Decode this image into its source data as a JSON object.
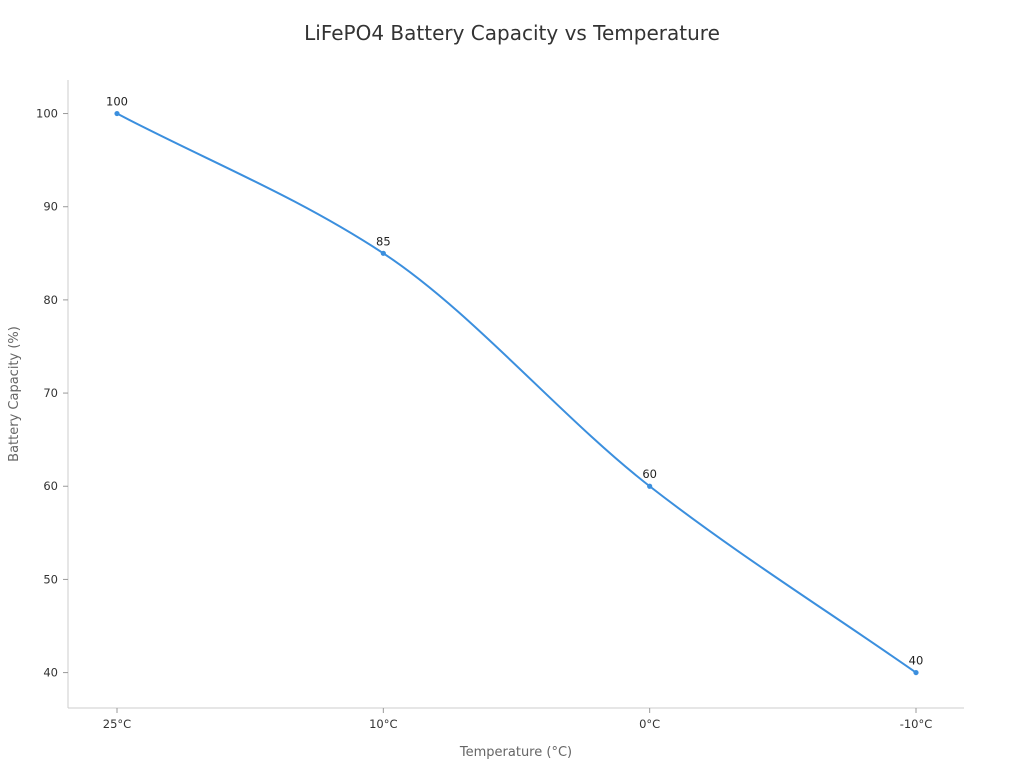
{
  "chart_data": {
    "type": "line",
    "title": "LiFePO4 Battery Capacity vs Temperature",
    "xlabel": "Temperature (°C)",
    "ylabel": "Battery Capacity (%)",
    "categories": [
      "25°C",
      "10°C",
      "0°C",
      "-10°C"
    ],
    "series": [
      {
        "values": [
          100,
          85,
          60,
          40
        ]
      }
    ],
    "data_labels": [
      "100",
      "85",
      "60",
      "40"
    ],
    "yticks": [
      40,
      50,
      60,
      70,
      80,
      90,
      100
    ],
    "ylim": [
      36.2,
      103.6
    ],
    "grid": false,
    "legend": "none",
    "line_color": "#3b8fde",
    "smooth": true
  }
}
